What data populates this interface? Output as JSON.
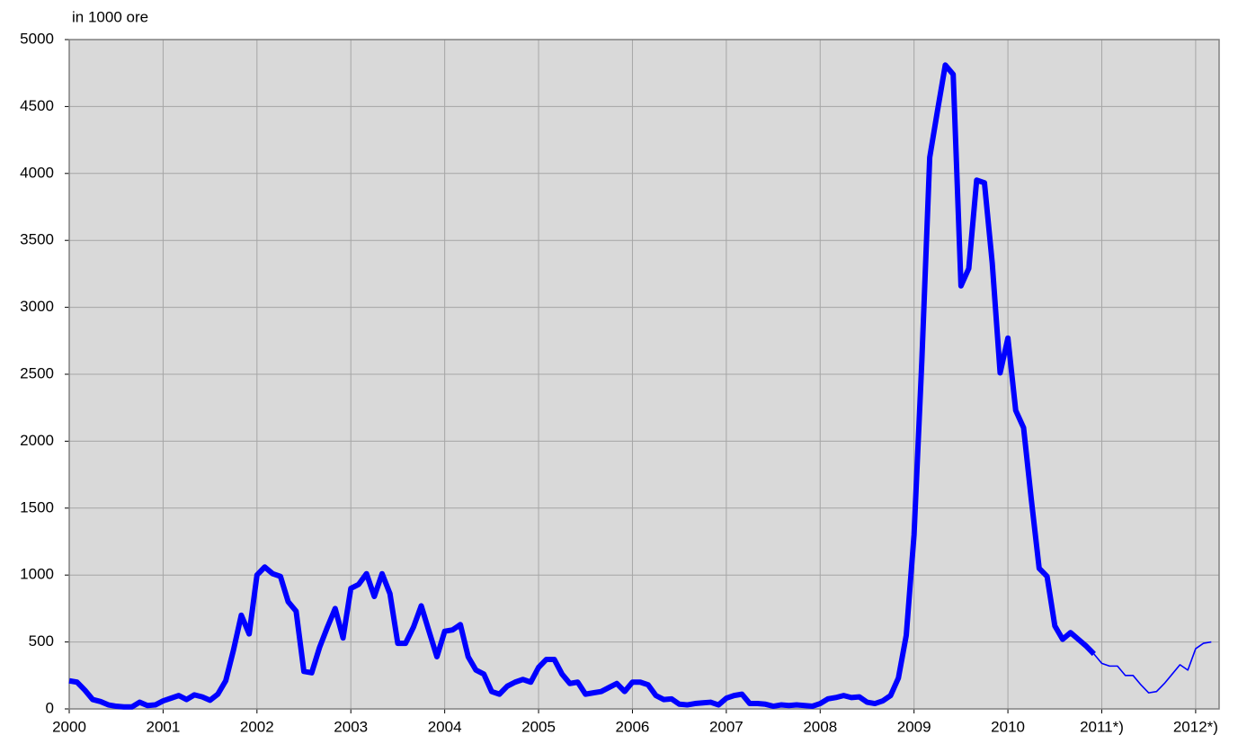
{
  "chart_data": {
    "type": "line",
    "y_label": "in 1000 ore",
    "x": [
      2000,
      2000.083,
      2000.167,
      2000.25,
      2000.333,
      2000.417,
      2000.5,
      2000.583,
      2000.667,
      2000.75,
      2000.833,
      2000.917,
      2001,
      2001.083,
      2001.167,
      2001.25,
      2001.333,
      2001.417,
      2001.5,
      2001.583,
      2001.667,
      2001.75,
      2001.833,
      2001.917,
      2002,
      2002.083,
      2002.167,
      2002.25,
      2002.333,
      2002.417,
      2002.5,
      2002.583,
      2002.667,
      2002.75,
      2002.833,
      2002.917,
      2003,
      2003.083,
      2003.167,
      2003.25,
      2003.333,
      2003.417,
      2003.5,
      2003.583,
      2003.667,
      2003.75,
      2003.833,
      2003.917,
      2004,
      2004.083,
      2004.167,
      2004.25,
      2004.333,
      2004.417,
      2004.5,
      2004.583,
      2004.667,
      2004.75,
      2004.833,
      2004.917,
      2005,
      2005.083,
      2005.167,
      2005.25,
      2005.333,
      2005.417,
      2005.5,
      2005.583,
      2005.667,
      2005.75,
      2005.833,
      2005.917,
      2006,
      2006.083,
      2006.167,
      2006.25,
      2006.333,
      2006.417,
      2006.5,
      2006.583,
      2006.667,
      2006.75,
      2006.833,
      2006.917,
      2007,
      2007.083,
      2007.167,
      2007.25,
      2007.333,
      2007.417,
      2007.5,
      2007.583,
      2007.667,
      2007.75,
      2007.833,
      2007.917,
      2008,
      2008.083,
      2008.167,
      2008.25,
      2008.333,
      2008.417,
      2008.5,
      2008.583,
      2008.667,
      2008.75,
      2008.833,
      2008.917,
      2009,
      2009.083,
      2009.167,
      2009.25,
      2009.333,
      2009.417,
      2009.5,
      2009.583,
      2009.667,
      2009.75,
      2009.833,
      2009.917,
      2010,
      2010.083,
      2010.167,
      2010.25,
      2010.333,
      2010.417,
      2010.5,
      2010.583,
      2010.667,
      2010.75,
      2010.833,
      2010.917,
      2011,
      2011.083,
      2011.167,
      2011.25,
      2011.333,
      2011.417,
      2011.5,
      2011.583,
      2011.667,
      2011.75,
      2011.833,
      2011.917,
      2012,
      2012.083,
      2012.167
    ],
    "series": [
      {
        "color": "#0000ff",
        "values": [
          210,
          200,
          140,
          70,
          55,
          30,
          20,
          15,
          15,
          50,
          25,
          30,
          60,
          80,
          100,
          70,
          105,
          90,
          65,
          110,
          210,
          440,
          700,
          560,
          1000,
          1060,
          1010,
          990,
          800,
          730,
          280,
          270,
          460,
          610,
          750,
          530,
          900,
          930,
          1010,
          840,
          1010,
          860,
          490,
          490,
          610,
          770,
          580,
          390,
          580,
          590,
          630,
          390,
          290,
          260,
          130,
          110,
          170,
          200,
          220,
          200,
          310,
          370,
          370,
          260,
          190,
          200,
          110,
          120,
          130,
          160,
          190,
          130,
          200,
          200,
          180,
          100,
          70,
          75,
          35,
          30,
          40,
          45,
          50,
          30,
          80,
          100,
          110,
          40,
          40,
          35,
          20,
          30,
          25,
          30,
          25,
          20,
          40,
          75,
          85,
          100,
          85,
          90,
          50,
          40,
          60,
          100,
          230,
          550,
          1300,
          2600,
          4120,
          4470,
          4810,
          4740,
          3160,
          3290,
          3950,
          3930,
          3330,
          2510,
          2770,
          2230,
          2100,
          1560,
          1050,
          990,
          620,
          520,
          570,
          520,
          470,
          410,
          null,
          null,
          null,
          null,
          null,
          null,
          null,
          null,
          null,
          null,
          null,
          null,
          null,
          null,
          null
        ]
      },
      {
        "color": "#0000ff",
        "values": [
          null,
          null,
          null,
          null,
          null,
          null,
          null,
          null,
          null,
          null,
          null,
          null,
          null,
          null,
          null,
          null,
          null,
          null,
          null,
          null,
          null,
          null,
          null,
          null,
          null,
          null,
          null,
          null,
          null,
          null,
          null,
          null,
          null,
          null,
          null,
          null,
          null,
          null,
          null,
          null,
          null,
          null,
          null,
          null,
          null,
          null,
          null,
          null,
          null,
          null,
          null,
          null,
          null,
          null,
          null,
          null,
          null,
          null,
          null,
          null,
          null,
          null,
          null,
          null,
          null,
          null,
          null,
          null,
          null,
          null,
          null,
          null,
          null,
          null,
          null,
          null,
          null,
          null,
          null,
          null,
          null,
          null,
          null,
          null,
          null,
          null,
          null,
          null,
          null,
          null,
          null,
          null,
          null,
          null,
          null,
          null,
          null,
          null,
          null,
          null,
          null,
          null,
          null,
          null,
          null,
          null,
          null,
          null,
          null,
          null,
          null,
          null,
          null,
          null,
          null,
          null,
          null,
          null,
          null,
          null,
          null,
          null,
          null,
          null,
          null,
          null,
          null,
          null,
          null,
          null,
          null,
          410,
          340,
          320,
          320,
          250,
          250,
          180,
          120,
          130,
          190,
          260,
          330,
          290,
          450,
          490,
          500
        ]
      }
    ],
    "xlim": [
      2000,
      2012.25
    ],
    "ylim": [
      0,
      5000
    ],
    "xticks": [
      2000,
      2001,
      2002,
      2003,
      2004,
      2005,
      2006,
      2007,
      2008,
      2009,
      2010,
      {
        "value": 2011,
        "label": "2011*)"
      },
      {
        "value": 2012,
        "label": "2012*)"
      }
    ],
    "yticks": [
      0,
      500,
      1000,
      1500,
      2000,
      2500,
      3000,
      3500,
      4000,
      4500,
      5000
    ],
    "grid": true,
    "background": "#d9d9d9"
  }
}
